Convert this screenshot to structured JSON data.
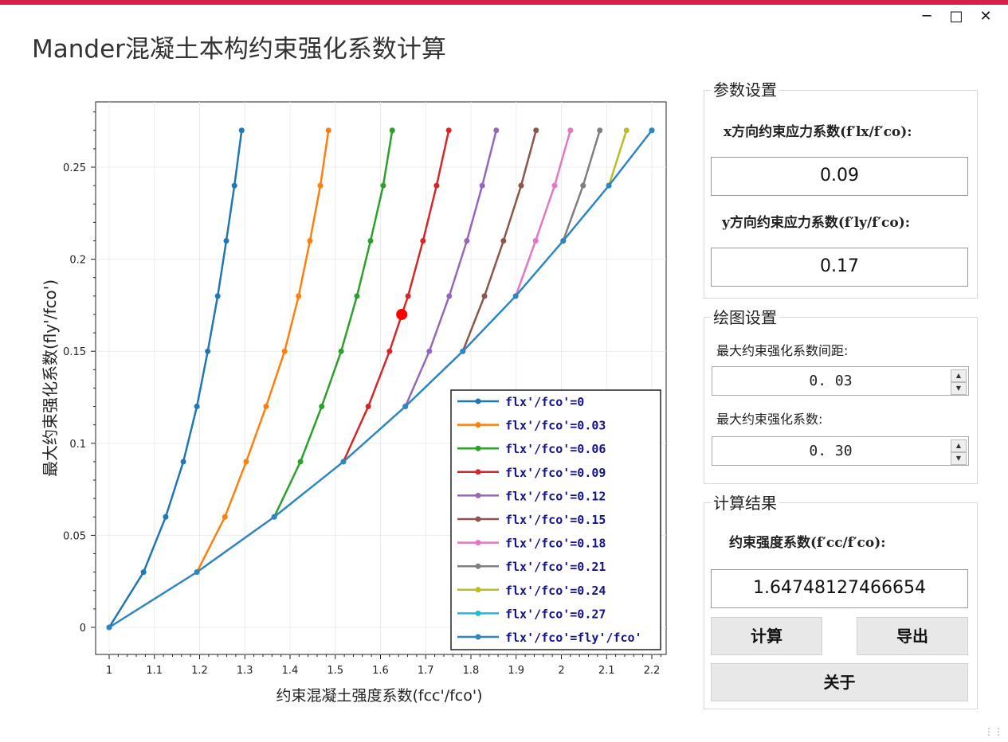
{
  "window": {
    "title": "Mander混凝土本构约束强化系数计算",
    "minimize_icon": "minimize-icon",
    "maximize_icon": "maximize-icon",
    "close_icon": "close-icon"
  },
  "params": {
    "group_title": "参数设置",
    "x_label": "x方向约束应力系数(f′lx/f′co):",
    "x_value": "0.09",
    "y_label": "y方向约束应力系数(f′ly/f′co):",
    "y_value": "0.17"
  },
  "plot_settings": {
    "group_title": "绘图设置",
    "spacing_label": "最大约束强化系数间距:",
    "spacing_value": "0. 03",
    "max_label": "最大约束强化系数:",
    "max_value": "0. 30"
  },
  "result": {
    "group_title": "计算结果",
    "label": "约束强度系数(f′cc/f′co):",
    "value": "1.64748127466654",
    "calc_button": "计算",
    "export_button": "导出",
    "about_button": "关于"
  },
  "chart_data": {
    "type": "line",
    "xlabel": "约束混凝土强度系数(fcc'/fco')",
    "ylabel": "最大约束强化系数(fly'/fco')",
    "xlim": [
      0.97,
      2.23
    ],
    "ylim": [
      -0.015,
      0.285
    ],
    "xticks": [
      "1",
      "1.1",
      "1.2",
      "1.3",
      "1.4",
      "1.5",
      "1.6",
      "1.7",
      "1.8",
      "1.9",
      "2",
      "2.1",
      "2.2"
    ],
    "yticks": [
      "0",
      "0.05",
      "0.1",
      "0.15",
      "0.2",
      "0.25"
    ],
    "grid": true,
    "legend_position": "bottom-right",
    "series": [
      {
        "name": "flx'/fco'=0",
        "color": "#1f77b4",
        "x": [
          1.0,
          1.076,
          1.125,
          1.164,
          1.194,
          1.218,
          1.24,
          1.259,
          1.277,
          1.293
        ],
        "y": [
          0,
          0.03,
          0.06,
          0.09,
          0.12,
          0.15,
          0.18,
          0.21,
          0.24,
          0.27
        ]
      },
      {
        "name": "flx'/fco'=0.03",
        "color": "#ff7f0e",
        "x": [
          1.194,
          1.256,
          1.303,
          1.347,
          1.388,
          1.419,
          1.444,
          1.467,
          1.485
        ],
        "y": [
          0.03,
          0.06,
          0.09,
          0.12,
          0.15,
          0.18,
          0.21,
          0.24,
          0.27
        ]
      },
      {
        "name": "flx'/fco'=0.06",
        "color": "#2ca02c",
        "x": [
          1.365,
          1.423,
          1.47,
          1.513,
          1.548,
          1.578,
          1.606,
          1.626
        ],
        "y": [
          0.06,
          0.09,
          0.12,
          0.15,
          0.18,
          0.21,
          0.24,
          0.27
        ]
      },
      {
        "name": "flx'/fco'=0.09",
        "color": "#d62728",
        "x": [
          1.518,
          1.573,
          1.62,
          1.661,
          1.694,
          1.724,
          1.751
        ],
        "y": [
          0.09,
          0.12,
          0.15,
          0.18,
          0.21,
          0.24,
          0.27
        ]
      },
      {
        "name": "flx'/fco'=0.12",
        "color": "#9467bd",
        "x": [
          1.655,
          1.708,
          1.752,
          1.791,
          1.825,
          1.856
        ],
        "y": [
          0.12,
          0.15,
          0.18,
          0.21,
          0.24,
          0.27
        ]
      },
      {
        "name": "flx'/fco'=0.15",
        "color": "#8c564b",
        "x": [
          1.782,
          1.83,
          1.872,
          1.911,
          1.944
        ],
        "y": [
          0.15,
          0.18,
          0.21,
          0.24,
          0.27
        ]
      },
      {
        "name": "flx'/fco'=0.18",
        "color": "#e377c2",
        "x": [
          1.899,
          1.943,
          1.985,
          2.02
        ],
        "y": [
          0.18,
          0.21,
          0.24,
          0.27
        ]
      },
      {
        "name": "flx'/fco'=0.21",
        "color": "#7f7f7f",
        "x": [
          2.004,
          2.048,
          2.085
        ],
        "y": [
          0.21,
          0.24,
          0.27
        ]
      },
      {
        "name": "flx'/fco'=0.24",
        "color": "#bcbd22",
        "x": [
          2.105,
          2.144
        ],
        "y": [
          0.24,
          0.27
        ]
      },
      {
        "name": "flx'/fco'=0.27",
        "color": "#17becf",
        "x": [
          2.2
        ],
        "y": [
          0.27
        ]
      },
      {
        "name": "flx'/fco'=fly'/fco'",
        "color": "#2e86c1",
        "x": [
          1.0,
          1.194,
          1.365,
          1.518,
          1.655,
          1.782,
          1.899,
          2.004,
          2.105,
          2.2
        ],
        "y": [
          0,
          0.03,
          0.06,
          0.09,
          0.12,
          0.15,
          0.18,
          0.21,
          0.24,
          0.27
        ]
      }
    ],
    "highlight_point": {
      "x": 1.647,
      "y": 0.17,
      "color": "#ff0000"
    }
  }
}
